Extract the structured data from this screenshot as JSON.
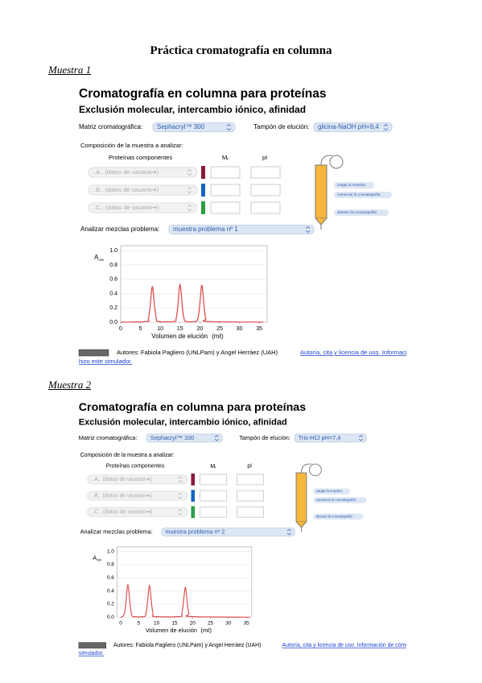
{
  "title": "Práctica cromatografía en columna",
  "samples": [
    {
      "label": "Muestra 1",
      "app": {
        "title": "Cromatografía en columna para proteínas",
        "subtitle": "Exclusión molecular, intercambio iónico, afinidad",
        "matrix_label": "Matriz cromatográfica:",
        "matrix_value": "Sephacryl™ 300",
        "buffer_label": "Tampón de elución:",
        "buffer_value": "glicina-NaOH pH=9,4",
        "composition_label": "Composición de la muestra a analizar:",
        "columns": {
          "proteins": "Proteínas componentes",
          "mr": "M",
          "mr_sub": "r",
          "pi": "pI"
        },
        "rows": [
          "..A.. (datos de usuario➔)",
          "..B.. (datos de usuario➔)",
          "..C.. (datos de usuario➔)"
        ],
        "buttons": [
          "cargar la muestra",
          "comenzar la cromatografía",
          "detener la cromatografía"
        ],
        "analyze_label": "Analizar mezclas problema:",
        "analyze_value": "muestra problema nº 1",
        "chart": {
          "type": "line",
          "y_label": "A",
          "y_label_sub": "280",
          "x_label": "Volumen de elución",
          "x_unit": "(mℓ)",
          "color": "#e05050",
          "xlim": [
            0,
            37
          ],
          "ylim": [
            0,
            1.07
          ],
          "xticks": [
            0,
            5,
            10,
            15,
            20,
            25,
            30,
            35
          ],
          "yticks": [
            {
              "value": 0,
              "label": "0.0"
            },
            0.2,
            0.4,
            0.6,
            0.8,
            {
              "value": 1,
              "label": "1.0"
            }
          ],
          "x": [
            0,
            6.5,
            7,
            7.4,
            7.7,
            8,
            8.3,
            8.6,
            9,
            9.5,
            13.5,
            14,
            14.4,
            14.7,
            15,
            15.3,
            15.6,
            16,
            16.5,
            19,
            19.5,
            19.9,
            20.2,
            20.5,
            20.8,
            21.1,
            21.5,
            22,
            36
          ],
          "values": [
            0,
            0.01,
            0.05,
            0.2,
            0.38,
            0.5,
            0.38,
            0.2,
            0.05,
            0.01,
            0.01,
            0.05,
            0.2,
            0.4,
            0.53,
            0.4,
            0.2,
            0.05,
            0.01,
            0.01,
            0.05,
            0.2,
            0.39,
            0.52,
            0.39,
            0.2,
            0.05,
            0.01,
            0
          ]
        },
        "authors": "Autores: Fabiola Pagliero (UNLPam) y Angel Herráez (UAH)",
        "link": [
          "Autoría, cita y licencia de uso. Información de cómo se",
          "hizo este simulador."
        ]
      }
    },
    {
      "label": "Muestra 2",
      "app": {
        "title": "Cromatografía en columna para proteínas",
        "subtitle": "Exclusión molecular, intercambio iónico, afinidad",
        "matrix_label": "Matriz cromatográfica:",
        "matrix_value": "Sephacryl™ 100",
        "buffer_label": "Tampón de elución:",
        "buffer_value": "Tris-HCl pH=7,4",
        "composition_label": "Composición de la muestra a analizar:",
        "columns": {
          "proteins": "Proteínas componentes",
          "mr": "M",
          "mr_sub": "r",
          "pi": "pI"
        },
        "rows": [
          "..A.. (datos de usuario➔)",
          "..B.. (datos de usuario➔)",
          "..C.. (datos de usuario➔)"
        ],
        "buttons": [
          "cargar la muestra",
          "comenzar la cromatografía",
          "detener la cromatografía"
        ],
        "analyze_label": "Analizar mezclas problema:",
        "analyze_value": "muestra problema nº 2",
        "chart": {
          "type": "line",
          "y_label": "A",
          "y_label_sub": "280",
          "x_label": "Volumen de elución",
          "x_unit": "(mℓ)",
          "color": "#e05050",
          "xlim": [
            -1,
            36.5
          ],
          "ylim": [
            0,
            1.07
          ],
          "xticks": [
            0,
            5,
            10,
            15,
            20,
            25,
            30,
            35
          ],
          "yticks": [
            {
              "value": 0,
              "label": "0.0"
            },
            0.2,
            0.4,
            0.6,
            0.8,
            {
              "value": 1,
              "label": "1.0"
            }
          ],
          "x": [
            0,
            0.5,
            1,
            1.4,
            1.7,
            2,
            2.3,
            2.6,
            3,
            3.5,
            6.5,
            7,
            7.4,
            7.7,
            8,
            8.3,
            8.6,
            9,
            9.5,
            16.5,
            17,
            17.4,
            17.7,
            18,
            18.3,
            18.6,
            19,
            19.5,
            36
          ],
          "values": [
            0,
            0.01,
            0.05,
            0.2,
            0.38,
            0.5,
            0.38,
            0.2,
            0.05,
            0.01,
            0.01,
            0.05,
            0.2,
            0.37,
            0.49,
            0.37,
            0.2,
            0.05,
            0.01,
            0.01,
            0.05,
            0.19,
            0.35,
            0.46,
            0.35,
            0.19,
            0.05,
            0.01,
            0
          ]
        },
        "authors": "Autores: Fabiola Pagliero (UNLPam) y Angel Herráez (UAH)",
        "link": [
          "Autoría, cita y licencia de uso. Información de cómo se",
          "simulador."
        ]
      }
    }
  ]
}
